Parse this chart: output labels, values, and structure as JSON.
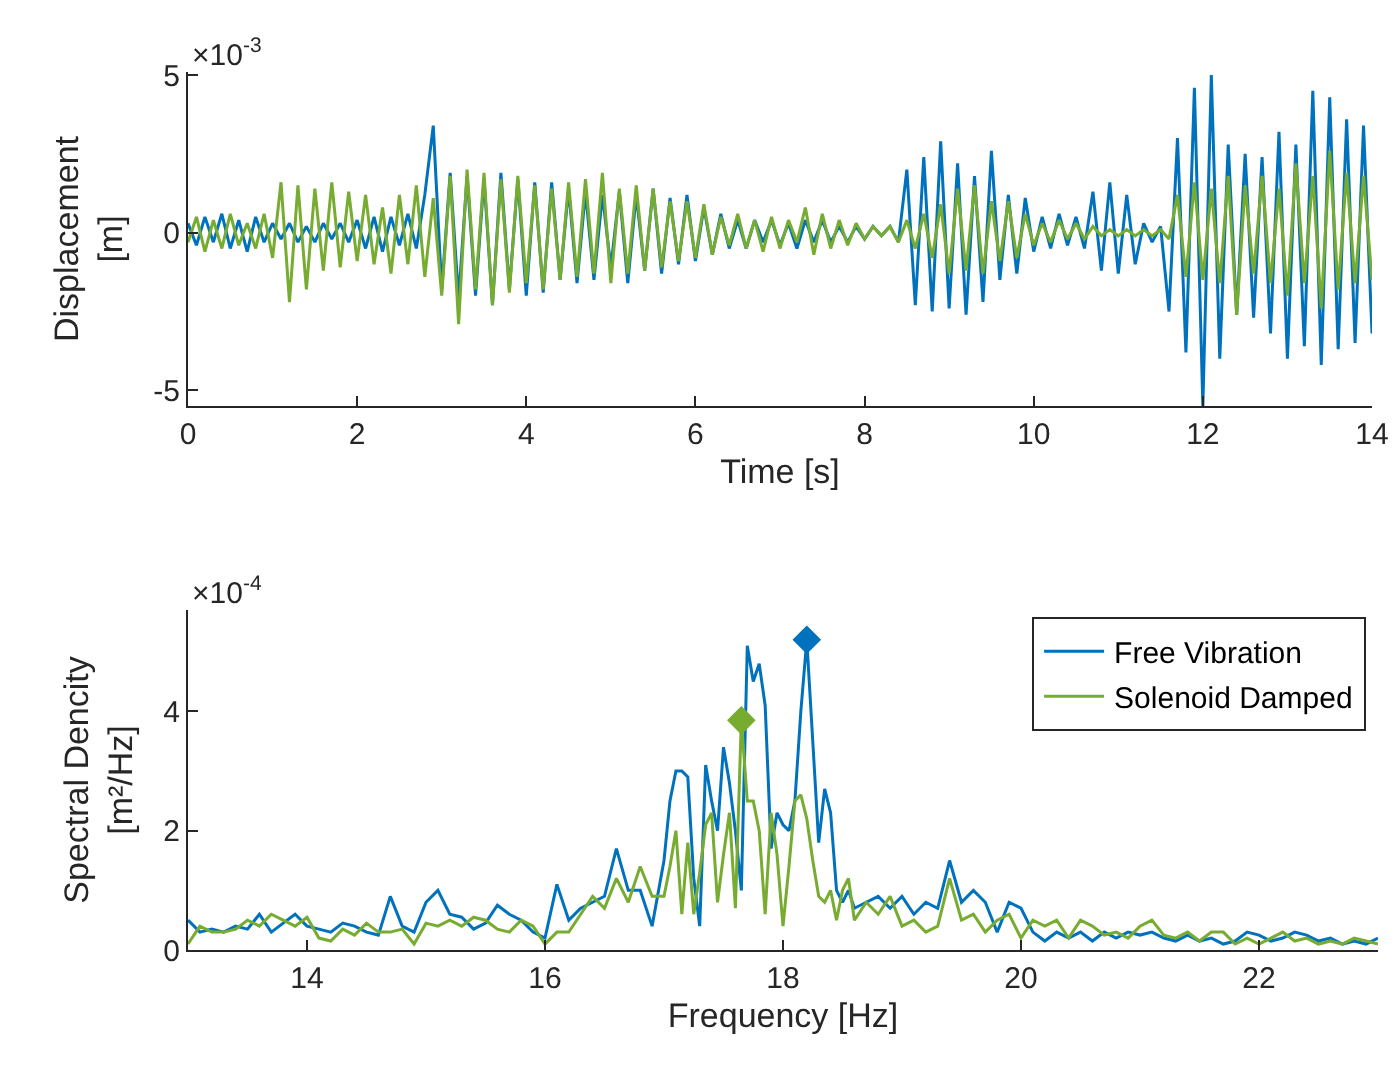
{
  "chart_data": [
    {
      "type": "line",
      "xlabel": "Time [s]",
      "ylabel": "Displacement\n[m]",
      "annotations": [
        "×10$^{-3}$"
      ],
      "xlim": [
        0,
        14
      ],
      "xticks": [
        0,
        2,
        4,
        6,
        8,
        10,
        12,
        14
      ],
      "ylim": [
        -5.5,
        5.1
      ],
      "yticks": [
        -5,
        0,
        5
      ],
      "grid": false,
      "marker": "none",
      "x": [
        0,
        0.1,
        0.2,
        0.3,
        0.4,
        0.5,
        0.6,
        0.7,
        0.8,
        0.9,
        1,
        1.1,
        1.2,
        1.3,
        1.4,
        1.5,
        1.6,
        1.7,
        1.8,
        1.9,
        2,
        2.1,
        2.2,
        2.3,
        2.4,
        2.5,
        2.6,
        2.7,
        2.8,
        2.9,
        3,
        3.1,
        3.2,
        3.3,
        3.4,
        3.5,
        3.6,
        3.7,
        3.8,
        3.9,
        4,
        4.1,
        4.2,
        4.3,
        4.4,
        4.5,
        4.6,
        4.7,
        4.8,
        4.9,
        5,
        5.1,
        5.2,
        5.3,
        5.4,
        5.5,
        5.6,
        5.7,
        5.8,
        5.9,
        6,
        6.1,
        6.2,
        6.3,
        6.4,
        6.5,
        6.6,
        6.7,
        6.8,
        6.9,
        7,
        7.1,
        7.2,
        7.3,
        7.4,
        7.5,
        7.6,
        7.7,
        7.8,
        7.9,
        8,
        8.1,
        8.2,
        8.3,
        8.4,
        8.5,
        8.6,
        8.7,
        8.8,
        8.9,
        9,
        9.1,
        9.2,
        9.3,
        9.4,
        9.5,
        9.6,
        9.7,
        9.8,
        9.9,
        10,
        10.1,
        10.2,
        10.3,
        10.4,
        10.5,
        10.6,
        10.7,
        10.8,
        10.9,
        11,
        11.1,
        11.2,
        11.3,
        11.4,
        11.5,
        11.6,
        11.7,
        11.8,
        11.9,
        12,
        12.1,
        12.2,
        12.3,
        12.4,
        12.5,
        12.6,
        12.7,
        12.8,
        12.9,
        13,
        13.1,
        13.2,
        13.3,
        13.4,
        13.5,
        13.6,
        13.7,
        13.8,
        13.9,
        14
      ],
      "series": [
        {
          "color": "#0072bd",
          "values": [
            0.3,
            -0.4,
            0.5,
            -0.3,
            0.6,
            -0.5,
            0.4,
            -0.6,
            0.5,
            -0.3,
            0.3,
            -0.2,
            0.3,
            -0.3,
            0.2,
            -0.3,
            0.3,
            -0.2,
            0.3,
            -0.3,
            0.4,
            -0.5,
            0.5,
            -0.6,
            0.5,
            -0.4,
            0.6,
            -0.5,
            1.2,
            3.4,
            -1.8,
            1.9,
            -2.1,
            1.8,
            -2.0,
            1.7,
            -2.3,
            1.9,
            -1.8,
            1.7,
            -2.0,
            1.6,
            -1.9,
            1.6,
            -1.5,
            1.4,
            -1.6,
            1.3,
            -1.5,
            1.2,
            -1.1,
            1.3,
            -1.6,
            1.2,
            -1.2,
            1.4,
            -1.3,
            1.1,
            -1.0,
            1.2,
            -0.9,
            0.8,
            -0.7,
            0.6,
            -0.5,
            0.4,
            -0.5,
            0.4,
            -0.3,
            0.4,
            -0.4,
            0.3,
            -0.5,
            0.4,
            -0.3,
            0.4,
            -0.3,
            0.2,
            -0.3,
            0.2,
            -0.2,
            0.2,
            -0.1,
            0.2,
            -0.3,
            2.0,
            -2.3,
            2.4,
            -2.5,
            2.9,
            -2.4,
            2.2,
            -2.6,
            1.8,
            -2.2,
            2.6,
            -1.5,
            1.2,
            -1.3,
            1.1,
            -0.6,
            0.5,
            -0.5,
            0.6,
            -0.4,
            0.5,
            -0.5,
            1.3,
            -1.2,
            1.6,
            -1.3,
            1.2,
            -1.0,
            0.3,
            -0.3,
            0.2,
            -2.5,
            3.0,
            -3.8,
            4.6,
            -5.5,
            5.0,
            -4.0,
            2.8,
            -2.6,
            2.5,
            -2.7,
            2.4,
            -3.2,
            3.2,
            -4.0,
            2.8,
            -3.6,
            4.5,
            -4.2,
            4.3,
            -3.7,
            3.6,
            -3.5,
            3.4,
            -3.2
          ]
        },
        {
          "color": "#77ac30",
          "values": [
            -0.3,
            0.5,
            -0.6,
            0.4,
            -0.5,
            0.6,
            -0.4,
            0.3,
            -0.5,
            0.6,
            -0.8,
            1.6,
            -2.2,
            1.5,
            -1.8,
            1.4,
            -1.2,
            1.6,
            -1.1,
            1.3,
            -0.9,
            1.2,
            -1.0,
            0.8,
            -1.3,
            1.2,
            -1.0,
            1.5,
            -1.4,
            1.1,
            -2.0,
            1.8,
            -2.9,
            2.0,
            -1.8,
            1.9,
            -2.3,
            1.7,
            -1.9,
            1.8,
            -1.6,
            1.5,
            -1.8,
            1.4,
            -1.5,
            1.6,
            -1.4,
            1.7,
            -1.3,
            1.9,
            -1.6,
            1.4,
            -1.3,
            1.5,
            -1.2,
            1.4,
            -1.1,
            1.0,
            -0.9,
            1.0,
            -0.8,
            0.9,
            -0.7,
            0.5,
            -0.4,
            0.6,
            -0.5,
            0.4,
            -0.6,
            0.5,
            -0.5,
            0.4,
            -0.3,
            0.8,
            -0.7,
            0.6,
            -0.5,
            0.4,
            -0.4,
            0.3,
            -0.2,
            0.2,
            -0.1,
            0.2,
            -0.3,
            0.4,
            -0.5,
            0.6,
            -0.8,
            0.9,
            -1.3,
            1.4,
            -1.2,
            1.5,
            -1.3,
            1.0,
            -0.9,
            1.0,
            -0.8,
            0.6,
            -0.4,
            0.3,
            -0.3,
            0.4,
            -0.2,
            0.3,
            -0.2,
            0.2,
            -0.1,
            0.1,
            -0.1,
            0.1,
            -0.1,
            0.1,
            -0.1,
            0.1,
            -0.2,
            1.2,
            -1.4,
            1.6,
            -1.5,
            1.4,
            -1.6,
            1.8,
            -2.6,
            1.5,
            -1.3,
            1.8,
            -1.6,
            1.4,
            -2.0,
            2.2,
            -1.6,
            1.8,
            -2.4,
            2.6,
            -1.8,
            1.9,
            -1.6,
            1.8,
            -1.5
          ]
        }
      ]
    },
    {
      "type": "line",
      "xlabel": "Frequency [Hz]",
      "ylabel": "Spectral Dencity\n[m²/Hz]",
      "annotations": [
        "×10$^{-4}$"
      ],
      "xlim": [
        13,
        23
      ],
      "xticks": [
        14,
        16,
        18,
        20,
        22
      ],
      "ylim": [
        0,
        5.7
      ],
      "yticks": [
        0,
        2,
        4
      ],
      "grid": false,
      "legend": "top right",
      "marker": "none",
      "x": [
        13,
        13.1,
        13.2,
        13.3,
        13.4,
        13.5,
        13.6,
        13.7,
        13.8,
        13.9,
        14,
        14.1,
        14.2,
        14.3,
        14.4,
        14.5,
        14.6,
        14.7,
        14.8,
        14.9,
        15,
        15.1,
        15.2,
        15.3,
        15.4,
        15.5,
        15.6,
        15.7,
        15.8,
        15.9,
        16,
        16.1,
        16.2,
        16.3,
        16.4,
        16.5,
        16.6,
        16.7,
        16.8,
        16.9,
        17,
        17.05,
        17.1,
        17.15,
        17.2,
        17.25,
        17.3,
        17.35,
        17.4,
        17.45,
        17.5,
        17.55,
        17.6,
        17.65,
        17.7,
        17.75,
        17.8,
        17.85,
        17.9,
        17.95,
        18,
        18.05,
        18.1,
        18.15,
        18.2,
        18.25,
        18.3,
        18.35,
        18.4,
        18.45,
        18.5,
        18.55,
        18.6,
        18.7,
        18.8,
        18.9,
        19,
        19.1,
        19.2,
        19.3,
        19.4,
        19.5,
        19.6,
        19.7,
        19.8,
        19.9,
        20,
        20.1,
        20.2,
        20.3,
        20.4,
        20.5,
        20.6,
        20.7,
        20.8,
        20.9,
        21,
        21.1,
        21.2,
        21.3,
        21.4,
        21.5,
        21.6,
        21.7,
        21.8,
        21.9,
        22,
        22.1,
        22.2,
        22.3,
        22.4,
        22.5,
        22.6,
        22.7,
        22.8,
        22.9,
        23
      ],
      "series": [
        {
          "name": "Free Vibration",
          "color": "#0072bd",
          "values": [
            0.5,
            0.3,
            0.35,
            0.3,
            0.4,
            0.35,
            0.6,
            0.3,
            0.45,
            0.6,
            0.4,
            0.35,
            0.3,
            0.45,
            0.4,
            0.3,
            0.25,
            0.9,
            0.4,
            0.3,
            0.8,
            1.0,
            0.6,
            0.55,
            0.35,
            0.45,
            0.75,
            0.6,
            0.5,
            0.3,
            0.2,
            1.1,
            0.5,
            0.7,
            0.8,
            0.9,
            1.7,
            1.0,
            1.0,
            0.4,
            1.5,
            2.5,
            3.0,
            3.0,
            2.9,
            1.2,
            0.4,
            3.1,
            2.5,
            2.0,
            3.4,
            2.8,
            2.0,
            1.0,
            5.1,
            4.5,
            4.8,
            4.1,
            1.7,
            2.3,
            2.1,
            2.0,
            2.5,
            4.0,
            5.2,
            3.5,
            1.8,
            2.7,
            2.3,
            1.0,
            0.8,
            1.0,
            0.7,
            0.8,
            0.9,
            0.7,
            0.9,
            0.6,
            0.8,
            0.7,
            1.5,
            0.8,
            1.0,
            0.8,
            0.3,
            0.8,
            0.7,
            0.3,
            0.15,
            0.3,
            0.2,
            0.3,
            0.15,
            0.3,
            0.2,
            0.3,
            0.25,
            0.3,
            0.2,
            0.15,
            0.25,
            0.15,
            0.2,
            0.1,
            0.15,
            0.3,
            0.25,
            0.15,
            0.2,
            0.3,
            0.25,
            0.15,
            0.2,
            0.1,
            0.15,
            0.1,
            0.2
          ]
        },
        {
          "name": "Solenoid Damped",
          "color": "#77ac30",
          "values": [
            0.1,
            0.4,
            0.3,
            0.3,
            0.35,
            0.5,
            0.4,
            0.6,
            0.5,
            0.4,
            0.55,
            0.2,
            0.15,
            0.35,
            0.25,
            0.45,
            0.3,
            0.3,
            0.35,
            0.1,
            0.45,
            0.4,
            0.5,
            0.4,
            0.55,
            0.5,
            0.35,
            0.3,
            0.5,
            0.4,
            0.1,
            0.3,
            0.3,
            0.6,
            0.9,
            0.7,
            1.2,
            0.8,
            1.4,
            0.9,
            0.9,
            1.4,
            2.0,
            0.6,
            1.8,
            0.6,
            1.3,
            2.1,
            2.3,
            0.8,
            1.6,
            2.3,
            0.7,
            3.85,
            2.5,
            2.5,
            2.0,
            0.6,
            2.3,
            1.6,
            0.4,
            1.4,
            2.5,
            2.6,
            2.2,
            1.5,
            0.9,
            0.8,
            1.0,
            0.5,
            1.0,
            1.2,
            0.5,
            0.8,
            0.6,
            0.9,
            0.4,
            0.5,
            0.3,
            0.4,
            1.2,
            0.5,
            0.6,
            0.3,
            0.5,
            0.6,
            0.2,
            0.5,
            0.4,
            0.5,
            0.2,
            0.5,
            0.4,
            0.25,
            0.3,
            0.2,
            0.4,
            0.5,
            0.25,
            0.2,
            0.3,
            0.15,
            0.3,
            0.3,
            0.1,
            0.2,
            0.1,
            0.2,
            0.3,
            0.15,
            0.2,
            0.1,
            0.15,
            0.1,
            0.2,
            0.15,
            0.1
          ]
        },
        {
          "type": "scatter",
          "marker": "diamond",
          "color": "#0072bd",
          "x": [
            18.2
          ],
          "values": [
            5.2
          ]
        },
        {
          "type": "scatter",
          "marker": "diamond",
          "color": "#77ac30",
          "x": [
            17.65
          ],
          "values": [
            3.85
          ]
        }
      ]
    }
  ]
}
